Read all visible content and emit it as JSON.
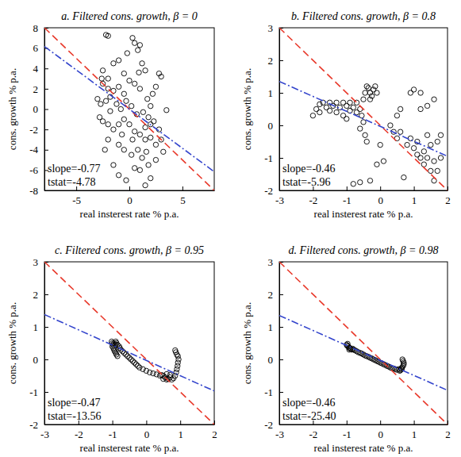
{
  "chart_data": [
    {
      "type": "scatter",
      "title": "a. Filtered cons. growth, β = 0",
      "x_label": "real insterest rate % p.a.",
      "y_label": "cons. growth % p.a.",
      "xlim": [
        -8,
        8
      ],
      "ylim": [
        -8,
        8
      ],
      "xticks": [
        -5,
        0,
        5
      ],
      "yticks": [
        -8,
        -6,
        -4,
        -2,
        0,
        2,
        4,
        6,
        8
      ],
      "annotations": [
        "slope=-0.77",
        "tstat=-4.78"
      ],
      "series": [
        {
          "type": "scatter",
          "marker": "circle",
          "color": "#000000",
          "x": [
            -2.2,
            -2.0,
            -1.5,
            -2.5,
            -2.0,
            -1.0,
            -0.5,
            0.3,
            0.5,
            0.8,
            1.0,
            1.2,
            1.5,
            2.8,
            3.0,
            2.5,
            2.0,
            3.5,
            -2.5,
            -2.0,
            -1.5,
            -1.0,
            -0.5,
            0.0,
            0.5,
            1.0,
            -3.0,
            -2.7,
            -2.2,
            -1.8,
            -1.2,
            -0.8,
            -0.3,
            0.2,
            0.7,
            1.3,
            1.8,
            2.3,
            2.0,
            1.5,
            -2.8,
            -2.5,
            -2.0,
            -1.5,
            -1.0,
            -0.5,
            0.0,
            0.5,
            1.0,
            1.5,
            2.0,
            2.5,
            3.0,
            -2.0,
            -1.0,
            -0.5,
            0.2,
            0.8,
            1.2,
            1.8,
            2.5,
            -1.5,
            0.5,
            1.0,
            -1.0,
            1.5,
            2.0,
            -0.3,
            3.2,
            2.8,
            -2.3,
            -1.8,
            -0.7,
            0.3,
            1.7,
            2.2,
            -2.6,
            0.9,
            -0.2,
            1.6
          ],
          "values": [
            7.3,
            7.2,
            4.5,
            3.8,
            3.0,
            4.8,
            3.5,
            7.0,
            6.5,
            5.8,
            6.3,
            4.5,
            3.8,
            3.5,
            3.2,
            2.2,
            0.3,
            -0.1,
            2.5,
            2.0,
            1.8,
            2.2,
            1.5,
            2.8,
            2.5,
            2.0,
            1.0,
            0.5,
            0.8,
            -0.2,
            0.5,
            0.0,
            0.8,
            0.3,
            -0.5,
            -0.3,
            -0.8,
            -1.2,
            -1.5,
            -1.8,
            -0.8,
            -1.2,
            -1.5,
            -2.0,
            -1.5,
            -1.0,
            -1.5,
            -2.2,
            -2.5,
            -3.0,
            -2.8,
            -3.5,
            -3.0,
            -3.0,
            -3.5,
            -4.0,
            -4.5,
            -4.0,
            -4.8,
            -5.5,
            -5.0,
            -5.5,
            -5.8,
            -6.0,
            -6.5,
            -7.5,
            -6.8,
            -7.0,
            -4.2,
            -2.0,
            -4.0,
            1.2,
            -2.5,
            -3.0,
            1.0,
            1.5,
            3.0,
            3.6,
            5.5,
            -4.2
          ]
        },
        {
          "type": "line",
          "line_style": "dashed",
          "color": "#e8392b",
          "x": [
            -8,
            8
          ],
          "values": [
            8,
            -8
          ]
        },
        {
          "type": "line",
          "line_style": "dashdot",
          "color": "#3344cc",
          "x": [
            -8,
            8
          ],
          "values": [
            6.16,
            -6.16
          ]
        }
      ]
    },
    {
      "type": "scatter",
      "title": "b. Filtered cons. growth, β = 0.8",
      "x_label": "real insterest rate % p.a.",
      "y_label": "cons. growth % p.a.",
      "xlim": [
        -3,
        2
      ],
      "ylim": [
        -2,
        3
      ],
      "xticks": [
        -3,
        -2,
        -1,
        0,
        1,
        2
      ],
      "yticks": [
        -2,
        -1,
        0,
        1,
        2,
        3
      ],
      "annotations": [
        "slope=-0.46",
        "tstat=-5.96"
      ],
      "series": [
        {
          "type": "scatter",
          "marker": "circle",
          "color": "#000000",
          "x": [
            -2.0,
            -1.9,
            -1.8,
            -1.8,
            -1.7,
            -1.6,
            -1.5,
            -1.5,
            -1.4,
            -1.3,
            -1.3,
            -1.2,
            -1.1,
            -1.1,
            -1.0,
            -1.0,
            -0.9,
            -0.9,
            -0.8,
            -0.7,
            -0.7,
            -0.6,
            -0.55,
            -0.5,
            -0.45,
            -0.4,
            -0.5,
            -0.45,
            -0.4,
            -0.35,
            -0.3,
            -0.3,
            -0.25,
            -0.2,
            -0.15,
            -0.1,
            -0.6,
            -0.8,
            -0.6,
            -0.3,
            -0.1,
            0.1,
            0.0,
            0.3,
            0.4,
            0.5,
            0.6,
            0.5,
            0.6,
            0.7,
            0.8,
            0.9,
            1.0,
            0.9,
            1.0,
            1.1,
            1.1,
            1.2,
            1.2,
            1.3,
            1.3,
            1.4,
            1.4,
            1.5,
            1.5,
            1.6,
            1.6,
            1.7,
            1.7,
            1.8,
            1.8,
            1.2,
            1.6,
            1.4
          ],
          "values": [
            0.3,
            0.5,
            0.4,
            0.65,
            0.7,
            0.55,
            0.45,
            0.7,
            0.6,
            0.7,
            0.4,
            0.55,
            0.7,
            0.3,
            0.6,
            0.2,
            0.7,
            0.45,
            0.55,
            0.4,
            0.7,
            0.5,
            0.3,
            0.1,
            -0.3,
            -0.5,
            0.8,
            1.0,
            1.2,
            1.15,
            1.0,
            0.8,
            0.9,
            1.1,
            1.2,
            1.0,
            -0.1,
            -1.8,
            -1.75,
            -1.7,
            -1.2,
            -1.1,
            -0.6,
            0.0,
            -0.2,
            -0.4,
            -0.2,
            0.3,
            0.5,
            -1.6,
            -0.6,
            1.0,
            1.1,
            -0.4,
            -0.7,
            -0.9,
            -0.5,
            -1.0,
            0.5,
            -1.2,
            -0.8,
            -1.0,
            -0.3,
            -0.6,
            -1.4,
            -1.1,
            -1.7,
            -0.5,
            -1.4,
            -0.3,
            -1.0,
            1.0,
            0.8,
            0.6
          ]
        },
        {
          "type": "line",
          "line_style": "dashed",
          "color": "#e8392b",
          "x": [
            -3,
            2
          ],
          "values": [
            3,
            -2
          ]
        },
        {
          "type": "line",
          "line_style": "dashdot",
          "color": "#3344cc",
          "x": [
            -3,
            2
          ],
          "values": [
            1.35,
            -0.95
          ]
        }
      ]
    },
    {
      "type": "scatter",
      "title": "c. Filtered cons. growth, β = 0.95",
      "x_label": "real insterest rate % p.a.",
      "y_label": "cons. growth % p.a.",
      "xlim": [
        -3,
        2
      ],
      "ylim": [
        -2,
        3
      ],
      "xticks": [
        -3,
        -2,
        -1,
        0,
        1,
        2
      ],
      "yticks": [
        -2,
        -1,
        0,
        1,
        2,
        3
      ],
      "annotations": [
        "slope=-0.47",
        "tstat=-13.56"
      ],
      "series": [
        {
          "type": "scatter",
          "marker": "circle",
          "color": "#000000",
          "x": [
            -1.02,
            -1.0,
            -0.98,
            -1.0,
            -0.97,
            -0.95,
            -0.93,
            -0.9,
            -0.88,
            -0.85,
            -0.9,
            -0.88,
            -0.85,
            -0.8,
            -0.78,
            -0.75,
            -0.7,
            -0.65,
            -0.6,
            -0.55,
            -0.5,
            -0.45,
            -0.4,
            -0.35,
            -0.3,
            -0.25,
            -0.2,
            -0.1,
            0.0,
            0.1,
            0.2,
            0.3,
            0.4,
            0.5,
            0.55,
            0.6,
            0.65,
            0.7,
            0.75,
            0.8,
            0.85,
            0.88,
            0.9,
            0.92,
            0.93,
            0.95,
            0.93,
            0.9,
            0.87,
            0.85,
            0.45,
            0.5,
            0.6,
            0.7,
            -0.95,
            -0.92
          ],
          "values": [
            0.55,
            0.5,
            0.45,
            0.4,
            0.35,
            0.3,
            0.25,
            0.2,
            0.15,
            0.1,
            0.55,
            0.5,
            0.45,
            0.4,
            0.35,
            0.3,
            0.25,
            0.2,
            0.15,
            0.1,
            0.05,
            0.0,
            -0.05,
            -0.1,
            -0.15,
            -0.2,
            -0.25,
            -0.3,
            -0.35,
            -0.4,
            -0.43,
            -0.46,
            -0.5,
            -0.5,
            -0.55,
            -0.45,
            -0.6,
            -0.55,
            -0.62,
            -0.58,
            -0.5,
            -0.4,
            -0.3,
            -0.2,
            -0.1,
            0.0,
            0.1,
            0.15,
            0.22,
            0.28,
            -0.48,
            -0.6,
            -0.62,
            -0.48,
            0.5,
            0.45
          ]
        },
        {
          "type": "line",
          "line_style": "dashed",
          "color": "#e8392b",
          "x": [
            -3,
            2
          ],
          "values": [
            3,
            -2
          ]
        },
        {
          "type": "line",
          "line_style": "dashdot",
          "color": "#3344cc",
          "x": [
            -3,
            2
          ],
          "values": [
            1.38,
            -0.97
          ]
        }
      ]
    },
    {
      "type": "scatter",
      "title": "d. Filtered cons. growth, β = 0.98",
      "x_label": "real insterest rate % p.a.",
      "y_label": "cons. growth % p.a.",
      "xlim": [
        -3,
        2
      ],
      "ylim": [
        -2,
        3
      ],
      "xticks": [
        -3,
        -2,
        -1,
        0,
        1,
        2
      ],
      "yticks": [
        -2,
        -1,
        0,
        1,
        2,
        3
      ],
      "annotations": [
        "slope=-0.46",
        "tstat=-25.40"
      ],
      "series": [
        {
          "type": "scatter",
          "marker": "circle",
          "color": "#000000",
          "x": [
            -1.0,
            -0.98,
            -0.95,
            -0.93,
            -0.9,
            -0.88,
            -0.85,
            -0.8,
            -0.75,
            -0.7,
            -0.65,
            -0.6,
            -0.55,
            -0.5,
            -0.45,
            -0.4,
            -0.35,
            -0.3,
            -0.25,
            -0.2,
            -0.15,
            -0.1,
            -0.05,
            0.0,
            0.05,
            0.1,
            0.15,
            0.2,
            0.25,
            0.3,
            0.35,
            0.4,
            0.45,
            0.5,
            0.55,
            0.6,
            0.62,
            0.65,
            0.68,
            0.7,
            0.7,
            0.68,
            0.66,
            0.64,
            0.58,
            -0.97,
            -0.92,
            -0.82
          ],
          "values": [
            0.45,
            0.42,
            0.4,
            0.36,
            0.35,
            0.32,
            0.3,
            0.3,
            0.28,
            0.25,
            0.22,
            0.2,
            0.18,
            0.15,
            0.12,
            0.1,
            0.08,
            0.05,
            0.03,
            0.0,
            -0.02,
            -0.05,
            -0.07,
            -0.1,
            -0.12,
            -0.15,
            -0.17,
            -0.2,
            -0.22,
            -0.25,
            -0.27,
            -0.28,
            -0.3,
            -0.32,
            -0.3,
            -0.33,
            -0.28,
            -0.25,
            -0.2,
            -0.15,
            -0.1,
            -0.05,
            0.0,
            -0.3,
            -0.35,
            0.48,
            0.3,
            0.33
          ]
        },
        {
          "type": "line",
          "line_style": "dashed",
          "color": "#e8392b",
          "x": [
            -3,
            2
          ],
          "values": [
            3,
            -2
          ]
        },
        {
          "type": "line",
          "line_style": "dashdot",
          "color": "#3344cc",
          "x": [
            -3,
            2
          ],
          "values": [
            1.35,
            -0.95
          ]
        }
      ]
    }
  ]
}
